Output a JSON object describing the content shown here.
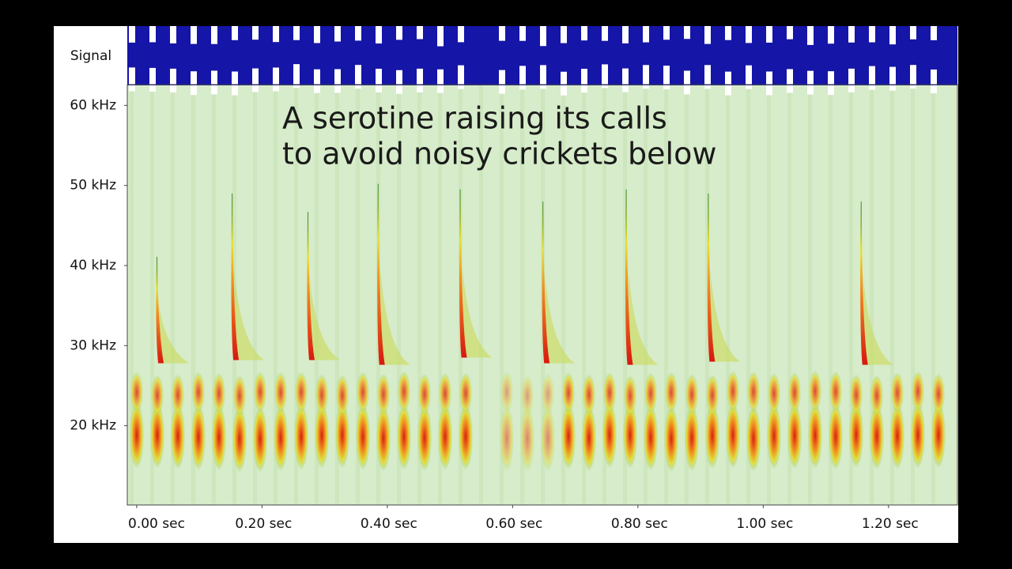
{
  "chart_data": {
    "type": "spectrogram",
    "signal_label": "Signal",
    "annotation": [
      "A serotine raising its calls",
      "to avoid noisy crickets below"
    ],
    "xlim": [
      -0.015,
      1.31
    ],
    "xticks": [
      {
        "value": 0,
        "label": "0.00 sec"
      },
      {
        "value": 0.2,
        "label": "0.20 sec"
      },
      {
        "value": 0.4,
        "label": "0.40 sec"
      },
      {
        "value": 0.6,
        "label": "0.60 sec"
      },
      {
        "value": 0.8,
        "label": "0.80 sec"
      },
      {
        "value": 1.0,
        "label": "1.00 sec"
      },
      {
        "value": 1.2,
        "label": "1.20 sec"
      }
    ],
    "ylim": [
      10.1,
      62.6
    ],
    "yticks": [
      {
        "value": 20,
        "label": "20 kHz"
      },
      {
        "value": 30,
        "label": "30 kHz"
      },
      {
        "value": 40,
        "label": "40 kHz"
      },
      {
        "value": 50,
        "label": "50 kHz"
      },
      {
        "value": 60,
        "label": "60 kHz"
      }
    ],
    "calls": {
      "x": [
        0.033,
        0.153,
        0.274,
        0.386,
        0.517,
        0.649,
        0.782,
        0.913,
        1.157
      ],
      "top": [
        41.1,
        49,
        46.7,
        50.2,
        49.5,
        48,
        49.5,
        49,
        48
      ],
      "bottom": [
        27.8,
        28.2,
        28.2,
        27.6,
        28.5,
        27.8,
        27.6,
        28,
        27.6
      ]
    }
  }
}
